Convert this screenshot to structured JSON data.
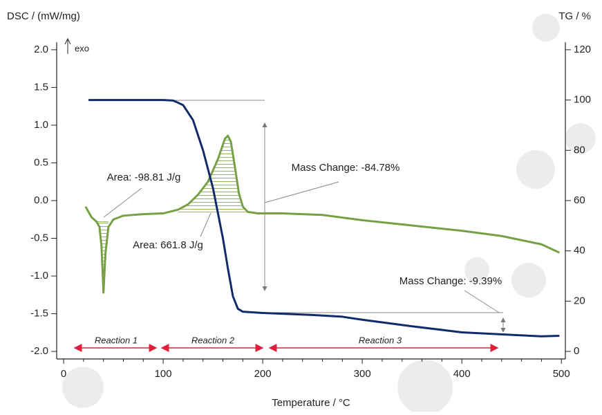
{
  "chart_data": {
    "type": "line",
    "xlabel": "Temperature / °C",
    "ylabel": "DSC / (mW/mg)",
    "y2label": "TG / %",
    "xlim": [
      -7,
      504
    ],
    "xticks": [
      0,
      100,
      200,
      300,
      400,
      500
    ],
    "ylim": [
      -2.1,
      2.1
    ],
    "yticks": [
      {
        "value": 2,
        "label": "2.0"
      },
      1.5,
      {
        "value": 1,
        "label": "1.0"
      },
      0.5,
      {
        "value": 0,
        "label": "0.0"
      },
      -0.5,
      {
        "value": -1,
        "label": "-1.0"
      },
      -1.5,
      {
        "value": -2,
        "label": "-2.0"
      }
    ],
    "y2lim": [
      -3,
      123
    ],
    "y2ticks": [
      0,
      20,
      40,
      60,
      80,
      100,
      120
    ],
    "series": [
      {
        "color": "#76a044",
        "axis": "y",
        "x": [
          22,
          28,
          33,
          36,
          38,
          40,
          42,
          45,
          50,
          60,
          80,
          100,
          115,
          125,
          135,
          145,
          155,
          162,
          165,
          168,
          172,
          176,
          180,
          185,
          195,
          220,
          260,
          300,
          350,
          400,
          440,
          480,
          498
        ],
        "values": [
          -0.08,
          -0.22,
          -0.28,
          -0.35,
          -0.6,
          -1.22,
          -0.7,
          -0.35,
          -0.25,
          -0.2,
          -0.18,
          -0.17,
          -0.12,
          -0.05,
          0.08,
          0.25,
          0.55,
          0.82,
          0.86,
          0.78,
          0.45,
          0.1,
          -0.08,
          -0.15,
          -0.17,
          -0.17,
          -0.19,
          -0.26,
          -0.33,
          -0.4,
          -0.47,
          -0.58,
          -0.69
        ]
      },
      {
        "color": "#112a6b",
        "axis": "y2",
        "x": [
          25,
          100,
          110,
          120,
          130,
          140,
          150,
          160,
          165,
          170,
          175,
          180,
          200,
          250,
          280,
          300,
          350,
          400,
          450,
          480,
          498
        ],
        "values": [
          100,
          100,
          99.8,
          98,
          92,
          80,
          65,
          45,
          33,
          22,
          17,
          15.8,
          15.3,
          14.5,
          13.8,
          12.6,
          10,
          7.6,
          6.6,
          6,
          6.2
        ]
      }
    ],
    "annotations": [
      "Area: -98.81 J/g",
      "Area: 661.8 J/g",
      "Mass Change: -84.78%",
      "Mass Change: -9.39%",
      "exo",
      "Reaction 1",
      "Reaction 2",
      "Reaction 3"
    ]
  }
}
